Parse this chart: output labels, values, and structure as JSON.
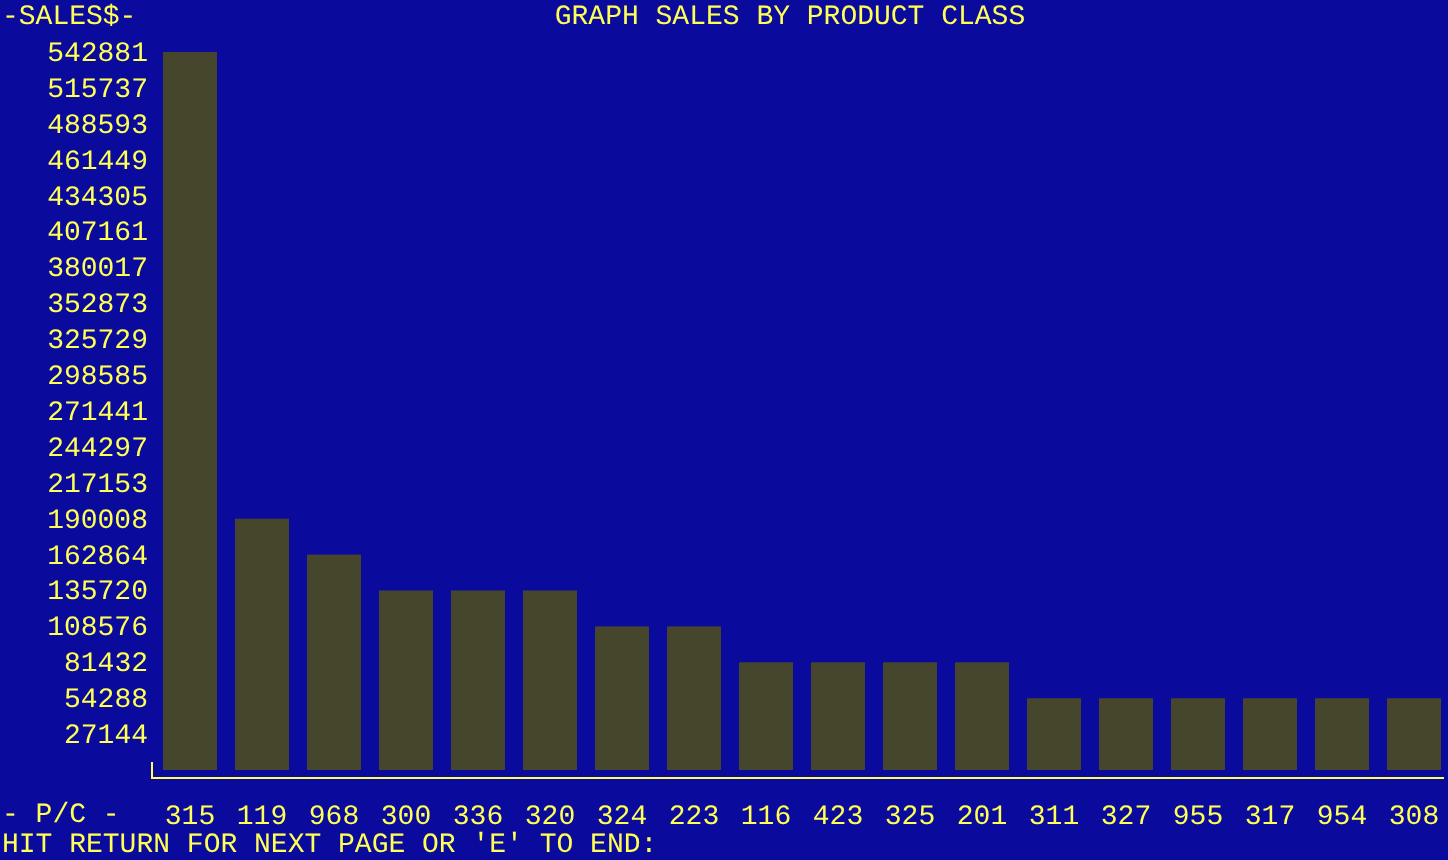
{
  "chart_data": {
    "type": "bar",
    "title": "GRAPH SALES BY PRODUCT CLASS",
    "ylabel": "-SALES$-",
    "xlabel": "- P/C -",
    "annotations": [
      "HIT RETURN FOR NEXT PAGE OR 'E' TO END:"
    ],
    "categories": [
      "315",
      "119",
      "968",
      "300",
      "336",
      "320",
      "324",
      "223",
      "116",
      "423",
      "325",
      "201",
      "311",
      "327",
      "955",
      "317",
      "954",
      "308"
    ],
    "values": [
      542881,
      190008,
      162864,
      135720,
      135720,
      135720,
      108576,
      108576,
      81432,
      81432,
      81432,
      81432,
      54288,
      54288,
      54288,
      54288,
      54288,
      54288
    ],
    "color": "#46462c",
    "ylim": [
      0,
      542881
    ],
    "yticks": [
      27144,
      54288,
      81432,
      108576,
      135720,
      162864,
      190008,
      217153,
      244297,
      271441,
      298585,
      325729,
      352873,
      380017,
      407161,
      434305,
      461449,
      488593,
      515737,
      542881
    ],
    "grid": false
  }
}
